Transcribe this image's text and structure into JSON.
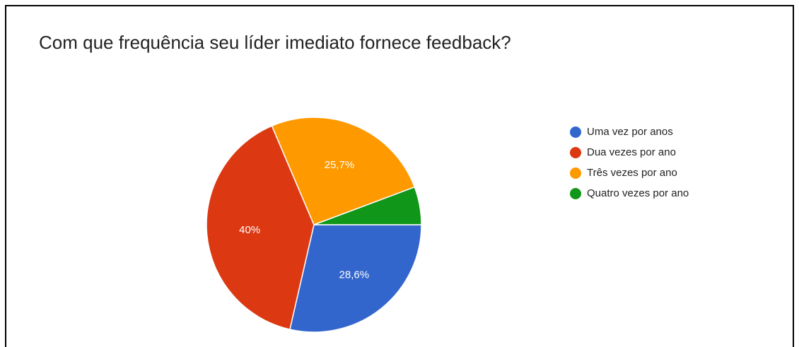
{
  "chart_data": {
    "type": "pie",
    "title": "Com que frequência seu líder imediato fornece feedback?",
    "categories": [
      "Uma vez por anos",
      "Dua vezes por ano",
      "Três vezes por ano",
      "Quatro vezes por ano"
    ],
    "values": [
      28.6,
      40,
      25.7,
      5.7
    ],
    "value_labels": [
      "28,6%",
      "40%",
      "25,7%",
      null
    ],
    "colors": [
      "#3366cc",
      "#dc3912",
      "#ff9900",
      "#109618"
    ],
    "legend": "right"
  }
}
